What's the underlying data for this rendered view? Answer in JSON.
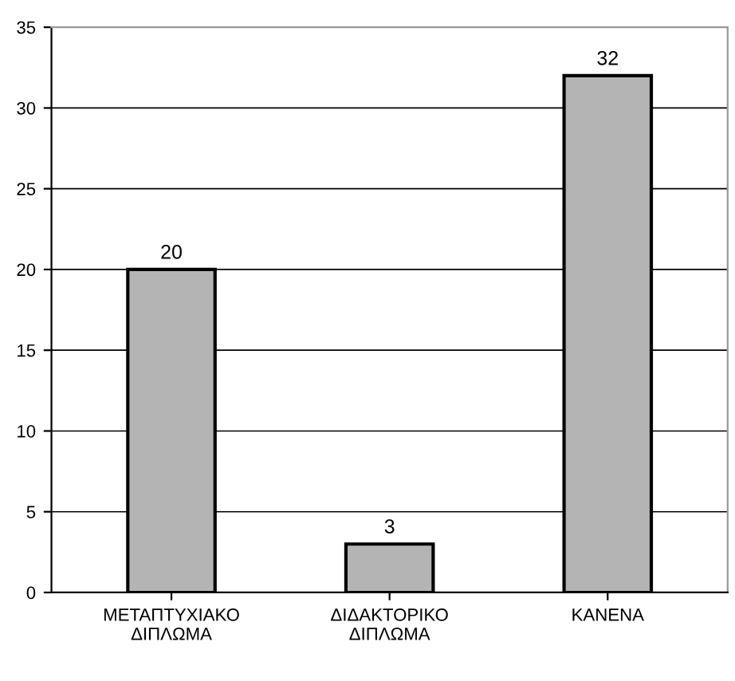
{
  "chart_data": {
    "type": "bar",
    "categories": [
      "ΜΕΤΑΠΤΥΧΙΑΚΟ\nΔΙΠΛΩΜΑ",
      "ΔΙΔΑΚΤΟΡΙΚΟ\nΔΙΠΛΩΜΑ",
      "ΚΑΝΕΝΑ"
    ],
    "values": [
      20,
      3,
      32
    ],
    "color": "#b4b4b4",
    "ylim": [
      0,
      35
    ],
    "yticks": [
      0,
      5,
      10,
      15,
      20,
      25,
      30,
      35
    ],
    "grid": "y",
    "data_labels": true
  }
}
